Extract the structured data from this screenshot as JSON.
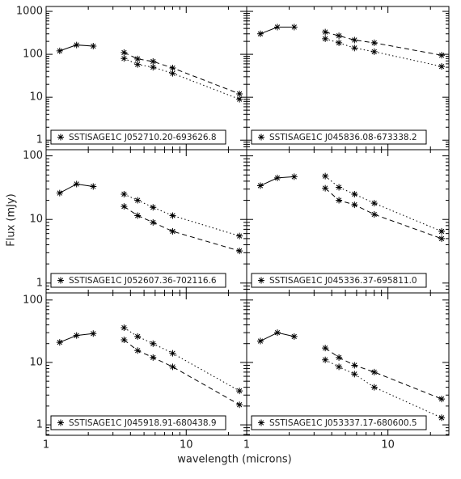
{
  "x_label": "wavelength (microns)",
  "y_label": "Flux (mJy)",
  "chart_data": [
    {
      "type": "line",
      "label": "SSTISAGE1C J052710.20-693626.8",
      "xscale": "log",
      "yscale": "log",
      "x": [
        1.25,
        1.65,
        2.17,
        3.6,
        4.5,
        5.8,
        8.0,
        24
      ],
      "xlim": [
        1,
        27
      ],
      "xticks": [
        1,
        10
      ],
      "ylim": [
        0.6,
        1300
      ],
      "yticks": [
        1,
        10,
        100,
        1000
      ],
      "series": [
        {
          "linestyle": "solid",
          "color": "#000000",
          "values": [
            120,
            165,
            155,
            null,
            null,
            null,
            null,
            null
          ]
        },
        {
          "linestyle": "dashed",
          "color": "#000000",
          "values": [
            null,
            null,
            null,
            110,
            78,
            68,
            48,
            12
          ]
        },
        {
          "linestyle": "dotted",
          "color": "#000000",
          "values": [
            null,
            null,
            null,
            80,
            58,
            50,
            36,
            9
          ]
        }
      ]
    },
    {
      "type": "line",
      "label": "SSTISAGE1C J045836.08-673338.2",
      "xscale": "log",
      "yscale": "log",
      "x": [
        1.25,
        1.65,
        2.17,
        3.6,
        4.5,
        5.8,
        8.0,
        24
      ],
      "xlim": [
        1,
        27
      ],
      "xticks": [
        1,
        10
      ],
      "ylim": [
        0.6,
        1300
      ],
      "yticks": [
        1,
        10,
        100,
        1000
      ],
      "series": [
        {
          "linestyle": "solid",
          "color": "#000000",
          "values": [
            300,
            430,
            430,
            null,
            null,
            null,
            null,
            null
          ]
        },
        {
          "linestyle": "dashed",
          "color": "#000000",
          "values": [
            null,
            null,
            null,
            330,
            270,
            215,
            185,
            95
          ]
        },
        {
          "linestyle": "dotted",
          "color": "#000000",
          "values": [
            null,
            null,
            null,
            230,
            185,
            140,
            115,
            52
          ]
        }
      ]
    },
    {
      "type": "line",
      "label": "SSTISAGE1C J052607.36-702116.6",
      "xscale": "log",
      "yscale": "log",
      "x": [
        1.25,
        1.65,
        2.17,
        3.6,
        4.5,
        5.8,
        8.0,
        24
      ],
      "xlim": [
        1,
        27
      ],
      "xticks": [
        1,
        10
      ],
      "ylim": [
        0.7,
        125
      ],
      "yticks": [
        1,
        10,
        100
      ],
      "series": [
        {
          "linestyle": "solid",
          "color": "#000000",
          "values": [
            26,
            36,
            33,
            null,
            null,
            null,
            null,
            null
          ]
        },
        {
          "linestyle": "dotted",
          "color": "#000000",
          "values": [
            null,
            null,
            null,
            25,
            20,
            15.5,
            11.5,
            5.5
          ]
        },
        {
          "linestyle": "dashed",
          "color": "#000000",
          "values": [
            null,
            null,
            null,
            16,
            11.5,
            9,
            6.5,
            3.2
          ]
        }
      ]
    },
    {
      "type": "line",
      "label": "SSTISAGE1C J045336.37-695811.0",
      "xscale": "log",
      "yscale": "log",
      "x": [
        1.25,
        1.65,
        2.17,
        3.6,
        4.5,
        5.8,
        8.0,
        24
      ],
      "xlim": [
        1,
        27
      ],
      "xticks": [
        1,
        10
      ],
      "ylim": [
        0.7,
        125
      ],
      "yticks": [
        1,
        10,
        100
      ],
      "series": [
        {
          "linestyle": "solid",
          "color": "#000000",
          "values": [
            34,
            45,
            47,
            null,
            null,
            null,
            null,
            null
          ]
        },
        {
          "linestyle": "dotted",
          "color": "#000000",
          "values": [
            null,
            null,
            null,
            48,
            32,
            25,
            18,
            6.5
          ]
        },
        {
          "linestyle": "dashed",
          "color": "#000000",
          "values": [
            null,
            null,
            null,
            31,
            20,
            17,
            12,
            5
          ]
        }
      ]
    },
    {
      "type": "line",
      "label": "SSTISAGE1C J045918.91-680438.9",
      "xscale": "log",
      "yscale": "log",
      "x": [
        1.25,
        1.65,
        2.17,
        3.6,
        4.5,
        5.8,
        8.0,
        24
      ],
      "xlim": [
        1,
        27
      ],
      "xticks": [
        1,
        10
      ],
      "ylim": [
        0.68,
        130
      ],
      "yticks": [
        1,
        10,
        100
      ],
      "series": [
        {
          "linestyle": "solid",
          "color": "#000000",
          "values": [
            21,
            27,
            29,
            null,
            null,
            null,
            null,
            null
          ]
        },
        {
          "linestyle": "dotted",
          "color": "#000000",
          "values": [
            null,
            null,
            null,
            36,
            26,
            20,
            14,
            3.5
          ]
        },
        {
          "linestyle": "dashed",
          "color": "#000000",
          "values": [
            null,
            null,
            null,
            23,
            15.5,
            12,
            8.5,
            2.1
          ]
        }
      ]
    },
    {
      "type": "line",
      "label": "SSTISAGE1C J053337.17-680600.5",
      "xscale": "log",
      "yscale": "log",
      "x": [
        1.25,
        1.65,
        2.17,
        3.6,
        4.5,
        5.8,
        8.0,
        24
      ],
      "xlim": [
        1,
        27
      ],
      "xticks": [
        1,
        10
      ],
      "ylim": [
        0.68,
        130
      ],
      "yticks": [
        1,
        10,
        100
      ],
      "series": [
        {
          "linestyle": "solid",
          "color": "#000000",
          "values": [
            22,
            30,
            26,
            null,
            null,
            null,
            null,
            null
          ]
        },
        {
          "linestyle": "dashed",
          "color": "#000000",
          "values": [
            null,
            null,
            null,
            17,
            12,
            9,
            7,
            2.6
          ]
        },
        {
          "linestyle": "dotted",
          "color": "#000000",
          "values": [
            null,
            null,
            null,
            11,
            8.5,
            6.5,
            4,
            1.3
          ]
        }
      ]
    }
  ]
}
